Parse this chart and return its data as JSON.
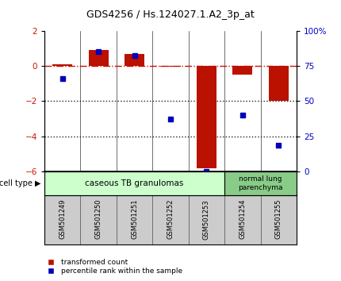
{
  "title": "GDS4256 / Hs.124027.1.A2_3p_at",
  "samples": [
    "GSM501249",
    "GSM501250",
    "GSM501251",
    "GSM501252",
    "GSM501253",
    "GSM501254",
    "GSM501255"
  ],
  "red_bars": [
    0.1,
    0.9,
    0.7,
    -0.05,
    -5.8,
    -0.5,
    -2.0
  ],
  "blue_dots_left": [
    -0.7,
    0.8,
    0.6,
    -3.0,
    -6.0,
    -2.8,
    -4.5
  ],
  "ylim_left": [
    -6,
    2
  ],
  "ylim_right": [
    0,
    100
  ],
  "yticks_left": [
    -6,
    -4,
    -2,
    0,
    2
  ],
  "yticks_right": [
    0,
    25,
    50,
    75,
    100
  ],
  "ytick_labels_right": [
    "0",
    "25",
    "50",
    "75",
    "100%"
  ],
  "red_bar_color": "#bb1100",
  "blue_dot_color": "#0000bb",
  "dashed_line_color": "#cc1100",
  "dotted_line_color": "#222222",
  "group1_label": "caseous TB granulomas",
  "group2_label": "normal lung\nparenchyma",
  "group1_color": "#ccffcc",
  "group2_color": "#88cc88",
  "cell_type_label": "cell type",
  "legend_red": "transformed count",
  "legend_blue": "percentile rank within the sample",
  "bar_width": 0.55,
  "tick_label_color_left": "#cc1100",
  "tick_label_color_right": "#0000cc",
  "box_facecolor": "#cccccc",
  "box_edgecolor": "#888888"
}
